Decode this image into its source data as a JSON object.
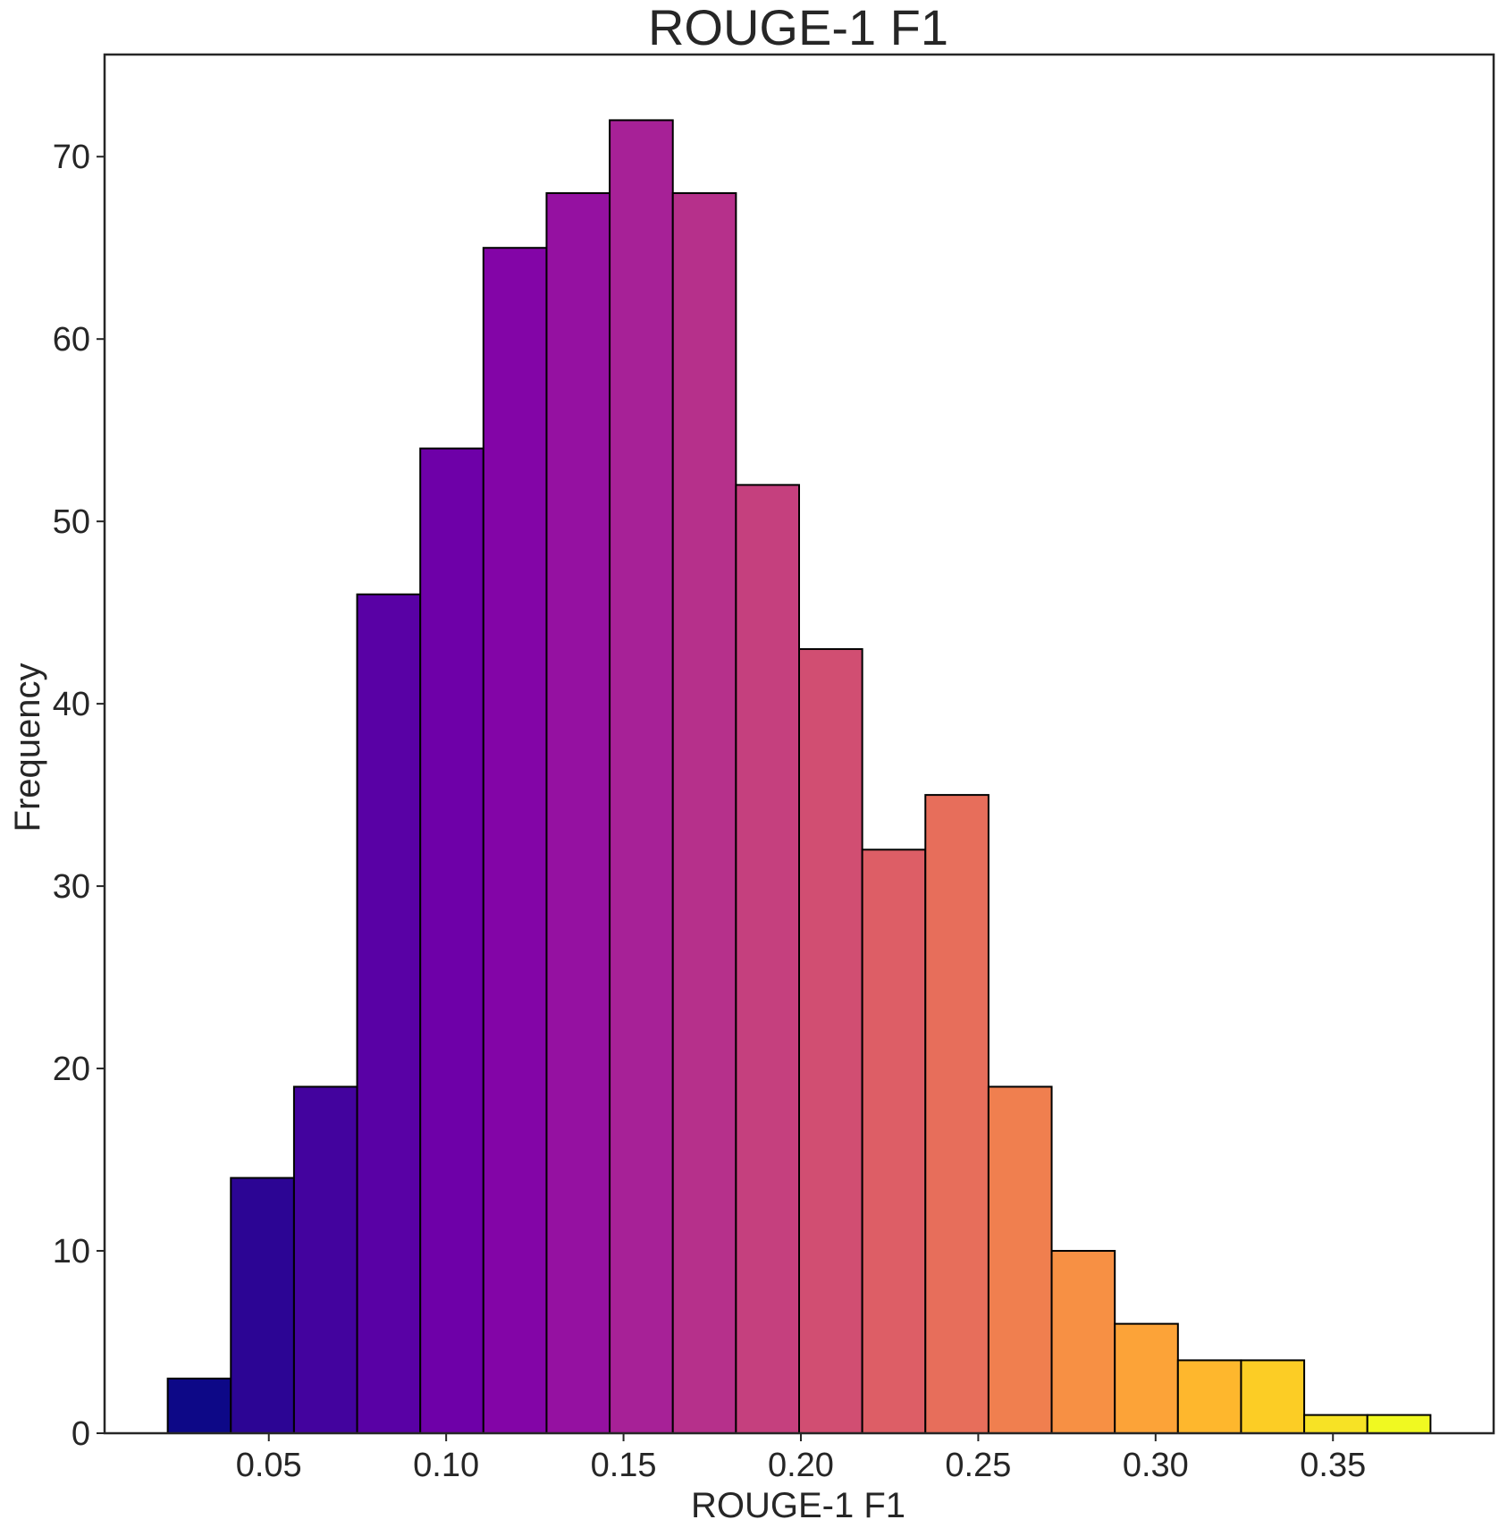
{
  "chart_data": {
    "type": "bar",
    "title": "ROUGE-1 F1",
    "xlabel": "ROUGE-1 F1",
    "ylabel": "Frequency",
    "bin_edges": [
      0.0215,
      0.0393,
      0.0571,
      0.0749,
      0.0927,
      0.1105,
      0.1283,
      0.1461,
      0.1639,
      0.1817,
      0.1995,
      0.2173,
      0.2351,
      0.2529,
      0.2707,
      0.2885,
      0.3063,
      0.3241,
      0.3419,
      0.3597,
      0.3775
    ],
    "values": [
      3,
      14,
      19,
      46,
      54,
      65,
      68,
      72,
      68,
      52,
      43,
      32,
      35,
      19,
      10,
      6,
      4,
      4,
      1,
      1
    ],
    "colors": [
      "#0d0887",
      "#2c0594",
      "#43039e",
      "#5901a5",
      "#6e00a8",
      "#8305a7",
      "#9511a1",
      "#a72197",
      "#b6308b",
      "#c5407e",
      "#d14e72",
      "#dd5e66",
      "#e76e5b",
      "#f07f4f",
      "#f79044",
      "#fca338",
      "#feb72d",
      "#fccd25",
      "#f7e225",
      "#f0f921"
    ],
    "xticks": [
      "0.05",
      "0.10",
      "0.15",
      "0.20",
      "0.25",
      "0.30",
      "0.35"
    ],
    "xtick_values": [
      0.05,
      0.1,
      0.15,
      0.2,
      0.25,
      0.3,
      0.35
    ],
    "yticks": [
      "0",
      "10",
      "20",
      "30",
      "40",
      "50",
      "60",
      "70"
    ],
    "ytick_values": [
      0,
      10,
      20,
      30,
      40,
      50,
      60,
      70
    ],
    "xlim": [
      0.0037,
      0.3953
    ],
    "ylim": [
      0,
      75.6
    ],
    "grid": false,
    "bar_edge_color": "#000000",
    "axis_color": "#262626"
  }
}
